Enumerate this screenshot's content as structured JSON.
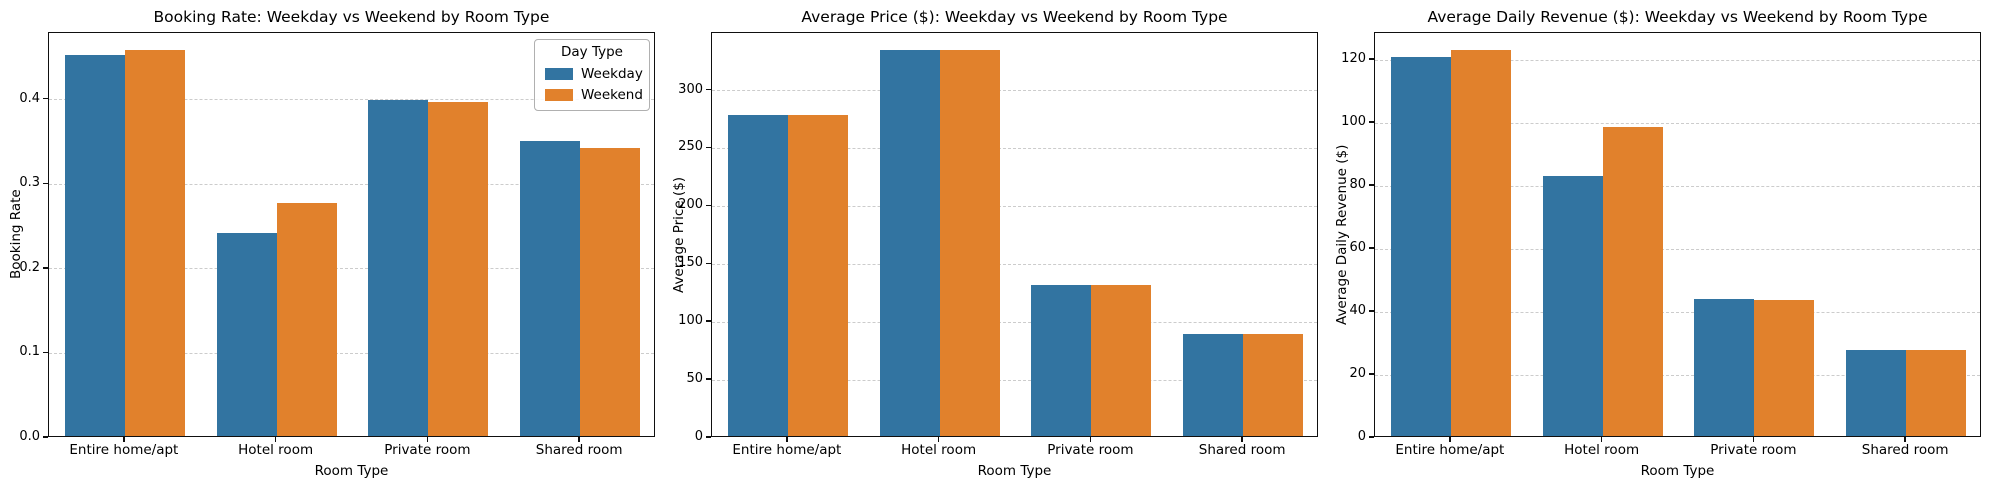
{
  "colors": {
    "weekday": "#3274A1",
    "weekend": "#E1812C",
    "grid": "#cccccc",
    "text": "#000000"
  },
  "chart_data": [
    {
      "type": "bar",
      "title": "Booking Rate: Weekday vs Weekend by Room Type",
      "xlabel": "Room Type",
      "ylabel": "Booking Rate",
      "categories": [
        "Entire home/apt",
        "Hotel room",
        "Private room",
        "Shared room"
      ],
      "series": [
        {
          "name": "Weekday",
          "color": "#3274A1",
          "values": [
            0.45,
            0.24,
            0.397,
            0.349
          ]
        },
        {
          "name": "Weekend",
          "color": "#E1812C",
          "values": [
            0.456,
            0.275,
            0.395,
            0.34
          ]
        }
      ],
      "ylim": [
        0,
        0.4788
      ],
      "yticks": [
        0.0,
        0.1,
        0.2,
        0.3,
        0.4
      ],
      "ytick_decimals": 1,
      "grid": "horizontal-dashed",
      "legend": {
        "show": true,
        "title": "Day Type",
        "position": "upper right"
      }
    },
    {
      "type": "bar",
      "title": "Average Price ($): Weekday vs Weekend by Room Type",
      "xlabel": "Room Type",
      "ylabel": "Average Price ($)",
      "categories": [
        "Entire home/apt",
        "Hotel room",
        "Private room",
        "Shared room"
      ],
      "series": [
        {
          "name": "Weekday",
          "color": "#3274A1",
          "values": [
            277,
            333,
            130,
            88
          ]
        },
        {
          "name": "Weekend",
          "color": "#E1812C",
          "values": [
            277,
            333,
            130,
            88
          ]
        }
      ],
      "ylim": [
        0,
        349.7
      ],
      "yticks": [
        0,
        50,
        100,
        150,
        200,
        250,
        300
      ],
      "ytick_decimals": 0,
      "grid": "horizontal-dashed",
      "legend": {
        "show": false
      }
    },
    {
      "type": "bar",
      "title": "Average Daily Revenue ($): Weekday vs Weekend by Room Type",
      "xlabel": "Room Type",
      "ylabel": "Average Daily Revenue ($)",
      "categories": [
        "Entire home/apt",
        "Hotel room",
        "Private room",
        "Shared room"
      ],
      "series": [
        {
          "name": "Weekday",
          "color": "#3274A1",
          "values": [
            120.5,
            82.7,
            43.5,
            27.3
          ]
        },
        {
          "name": "Weekend",
          "color": "#E1812C",
          "values": [
            122.5,
            98.2,
            43.1,
            27.3
          ]
        }
      ],
      "ylim": [
        0,
        128.6
      ],
      "yticks": [
        0,
        20,
        40,
        60,
        80,
        100,
        120
      ],
      "ytick_decimals": 0,
      "grid": "horizontal-dashed",
      "legend": {
        "show": false
      }
    }
  ]
}
